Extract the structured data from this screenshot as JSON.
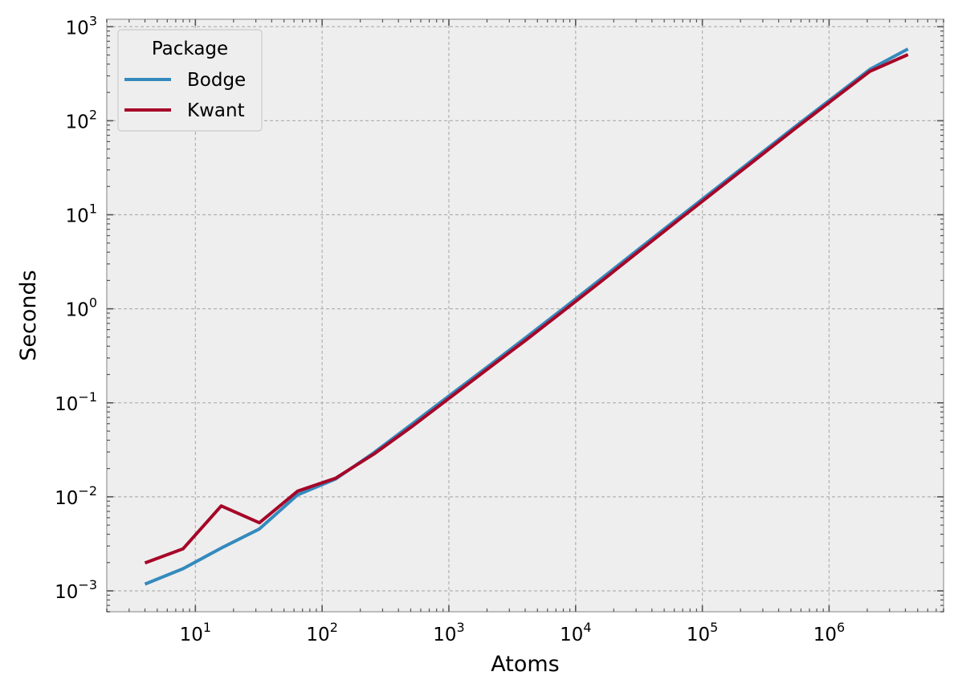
{
  "chart_data": {
    "type": "line",
    "title": "",
    "xlabel": "Atoms",
    "ylabel": "Seconds",
    "xscale": "log",
    "yscale": "log",
    "xlim": [
      2,
      8000000
    ],
    "ylim": [
      0.0006,
      1200
    ],
    "grid": true,
    "x_ticks": [
      {
        "value": 10,
        "base": "10",
        "exp": "1"
      },
      {
        "value": 100,
        "base": "10",
        "exp": "2"
      },
      {
        "value": 1000,
        "base": "10",
        "exp": "3"
      },
      {
        "value": 10000,
        "base": "10",
        "exp": "4"
      },
      {
        "value": 100000,
        "base": "10",
        "exp": "5"
      },
      {
        "value": 1000000,
        "base": "10",
        "exp": "6"
      }
    ],
    "y_ticks": [
      {
        "value": 0.001,
        "base": "10",
        "exp": "−3"
      },
      {
        "value": 0.01,
        "base": "10",
        "exp": "−2"
      },
      {
        "value": 0.1,
        "base": "10",
        "exp": "−1"
      },
      {
        "value": 1,
        "base": "10",
        "exp": "0"
      },
      {
        "value": 10,
        "base": "10",
        "exp": "1"
      },
      {
        "value": 100,
        "base": "10",
        "exp": "2"
      },
      {
        "value": 1000,
        "base": "10",
        "exp": "3"
      }
    ],
    "legend": {
      "title": "Package",
      "position": "top-left"
    },
    "x": [
      4,
      8,
      16,
      32,
      64,
      128,
      256,
      512,
      1024,
      2048,
      4096,
      8192,
      16384,
      32768,
      65536,
      131072,
      262144,
      524288,
      1048576,
      2097152,
      4194304
    ],
    "series": [
      {
        "name": "Bodge",
        "color": "#348abd",
        "values": [
          0.00118,
          0.00172,
          0.00285,
          0.00455,
          0.0105,
          0.0155,
          0.0295,
          0.0595,
          0.121,
          0.245,
          0.5,
          1.03,
          2.15,
          4.5,
          9.4,
          19.5,
          40.5,
          84,
          172,
          352,
          580
        ]
      },
      {
        "name": "Kwant",
        "color": "#a60628",
        "values": [
          0.00198,
          0.0028,
          0.008,
          0.0053,
          0.0115,
          0.0158,
          0.0285,
          0.056,
          0.114,
          0.232,
          0.47,
          0.97,
          2.02,
          4.25,
          8.9,
          18.5,
          38.5,
          80,
          164,
          335,
          505
        ]
      }
    ]
  }
}
